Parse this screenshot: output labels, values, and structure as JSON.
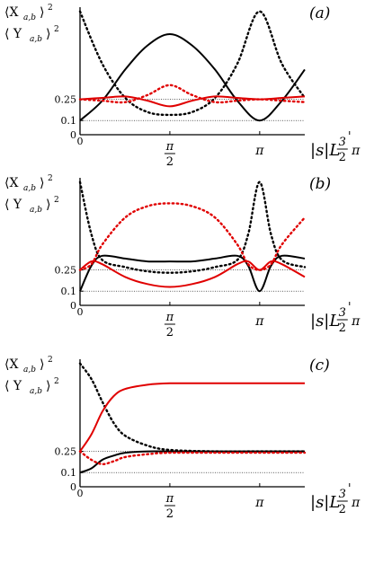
{
  "chart_data": [
    {
      "type": "line",
      "panel_label": "(a)",
      "ylabel_top": "⟨X_{a,b}⟩²",
      "ylabel_bottom": "⟨ Y_{a,b}⟩²",
      "xlabel": "|s|L",
      "x_ticks": [
        "0",
        "π/2",
        "π",
        "3/2 π"
      ],
      "y_ticks": [
        "0",
        "0.1",
        "0.25"
      ],
      "xlim": [
        0,
        3.93
      ],
      "ylim": [
        0,
        0.9
      ],
      "reference_lines": [
        0.1,
        0.25
      ],
      "colors": {
        "black": "#000000",
        "red": "#e00000"
      },
      "series": [
        {
          "color": "black",
          "style": "solid",
          "x": [
            0,
            0.39,
            0.79,
            1.18,
            1.57,
            1.96,
            2.36,
            2.75,
            3.14,
            3.53,
            3.93
          ],
          "y": [
            0.1,
            0.24,
            0.46,
            0.63,
            0.71,
            0.63,
            0.46,
            0.24,
            0.1,
            0.24,
            0.46
          ]
        },
        {
          "color": "black",
          "style": "dotted",
          "x": [
            0,
            0.39,
            0.79,
            1.18,
            1.57,
            1.96,
            2.36,
            2.75,
            3.14,
            3.53,
            3.93
          ],
          "y": [
            0.87,
            0.5,
            0.26,
            0.16,
            0.14,
            0.16,
            0.26,
            0.5,
            0.87,
            0.5,
            0.26
          ]
        },
        {
          "color": "red",
          "style": "solid",
          "x": [
            0,
            0.39,
            0.79,
            1.18,
            1.57,
            1.96,
            2.36,
            2.75,
            3.14,
            3.53,
            3.93
          ],
          "y": [
            0.25,
            0.26,
            0.27,
            0.24,
            0.2,
            0.24,
            0.27,
            0.26,
            0.25,
            0.26,
            0.27
          ]
        },
        {
          "color": "red",
          "style": "dotted",
          "x": [
            0,
            0.39,
            0.79,
            1.18,
            1.57,
            1.96,
            2.36,
            2.75,
            3.14,
            3.53,
            3.93
          ],
          "y": [
            0.25,
            0.24,
            0.23,
            0.28,
            0.35,
            0.28,
            0.23,
            0.24,
            0.25,
            0.24,
            0.23
          ]
        }
      ]
    },
    {
      "type": "line",
      "panel_label": "(b)",
      "ylabel_top": "⟨X_{a,b}⟩²",
      "ylabel_bottom": "⟨ Y_{a,b}⟩²",
      "xlabel": "|s|L",
      "x_ticks": [
        "0",
        "π/2",
        "π",
        "3/2 π"
      ],
      "y_ticks": [
        "0",
        "0.1",
        "0.25"
      ],
      "xlim": [
        0,
        3.93
      ],
      "ylim": [
        0,
        0.9
      ],
      "reference_lines": [
        0.1,
        0.25
      ],
      "colors": {
        "black": "#000000",
        "red": "#e00000"
      },
      "series": [
        {
          "color": "black",
          "style": "solid",
          "x": [
            0,
            0.2,
            0.39,
            0.79,
            1.18,
            1.57,
            1.96,
            2.36,
            2.75,
            2.94,
            3.14,
            3.34,
            3.53,
            3.93
          ],
          "y": [
            0.1,
            0.28,
            0.35,
            0.33,
            0.31,
            0.31,
            0.31,
            0.33,
            0.35,
            0.28,
            0.1,
            0.28,
            0.35,
            0.33
          ]
        },
        {
          "color": "black",
          "style": "dotted",
          "x": [
            0,
            0.2,
            0.39,
            0.79,
            1.18,
            1.57,
            1.96,
            2.36,
            2.75,
            2.94,
            3.14,
            3.34,
            3.53,
            3.93
          ],
          "y": [
            0.87,
            0.5,
            0.32,
            0.27,
            0.24,
            0.23,
            0.24,
            0.27,
            0.32,
            0.5,
            0.87,
            0.5,
            0.32,
            0.27
          ]
        },
        {
          "color": "red",
          "style": "solid",
          "x": [
            0,
            0.2,
            0.39,
            0.79,
            1.18,
            1.57,
            1.96,
            2.36,
            2.75,
            2.94,
            3.14,
            3.34,
            3.53,
            3.93
          ],
          "y": [
            0.25,
            0.31,
            0.29,
            0.2,
            0.15,
            0.13,
            0.15,
            0.2,
            0.29,
            0.31,
            0.25,
            0.31,
            0.29,
            0.2
          ]
        },
        {
          "color": "red",
          "style": "dotted",
          "x": [
            0,
            0.2,
            0.39,
            0.79,
            1.18,
            1.57,
            1.96,
            2.36,
            2.75,
            2.94,
            3.14,
            3.34,
            3.53,
            3.93
          ],
          "y": [
            0.25,
            0.29,
            0.43,
            0.62,
            0.7,
            0.72,
            0.7,
            0.62,
            0.43,
            0.29,
            0.25,
            0.29,
            0.43,
            0.62
          ]
        }
      ]
    },
    {
      "type": "line",
      "panel_label": "(c)",
      "ylabel_top": "⟨X_{a,b}⟩²",
      "ylabel_bottom": "⟨ Y_{a,b}⟩²",
      "xlabel": "|s|L",
      "x_ticks": [
        "0",
        "π/2",
        "π",
        "3/2 π"
      ],
      "y_ticks": [
        "0",
        "0.1",
        "0.25"
      ],
      "xlim": [
        0,
        3.93
      ],
      "ylim": [
        0,
        0.9
      ],
      "reference_lines": [
        0.1,
        0.25
      ],
      "colors": {
        "black": "#000000",
        "red": "#e00000"
      },
      "series": [
        {
          "color": "black",
          "style": "solid",
          "x": [
            0,
            0.2,
            0.39,
            0.59,
            0.79,
            1.18,
            1.57,
            2.36,
            3.14,
            3.93
          ],
          "y": [
            0.1,
            0.13,
            0.19,
            0.22,
            0.24,
            0.25,
            0.25,
            0.25,
            0.25,
            0.25
          ]
        },
        {
          "color": "black",
          "style": "dotted",
          "x": [
            0,
            0.2,
            0.39,
            0.59,
            0.79,
            1.18,
            1.57,
            2.36,
            3.14,
            3.93
          ],
          "y": [
            0.87,
            0.76,
            0.6,
            0.45,
            0.36,
            0.29,
            0.26,
            0.25,
            0.25,
            0.25
          ]
        },
        {
          "color": "red",
          "style": "solid",
          "x": [
            0,
            0.2,
            0.39,
            0.59,
            0.79,
            1.18,
            1.57,
            2.36,
            3.14,
            3.93
          ],
          "y": [
            0.25,
            0.37,
            0.53,
            0.64,
            0.69,
            0.72,
            0.73,
            0.73,
            0.73,
            0.73
          ]
        },
        {
          "color": "red",
          "style": "dotted",
          "x": [
            0,
            0.2,
            0.39,
            0.59,
            0.79,
            1.18,
            1.57,
            2.36,
            3.14,
            3.93
          ],
          "y": [
            0.25,
            0.19,
            0.16,
            0.18,
            0.21,
            0.23,
            0.24,
            0.24,
            0.24,
            0.24
          ]
        }
      ]
    }
  ]
}
